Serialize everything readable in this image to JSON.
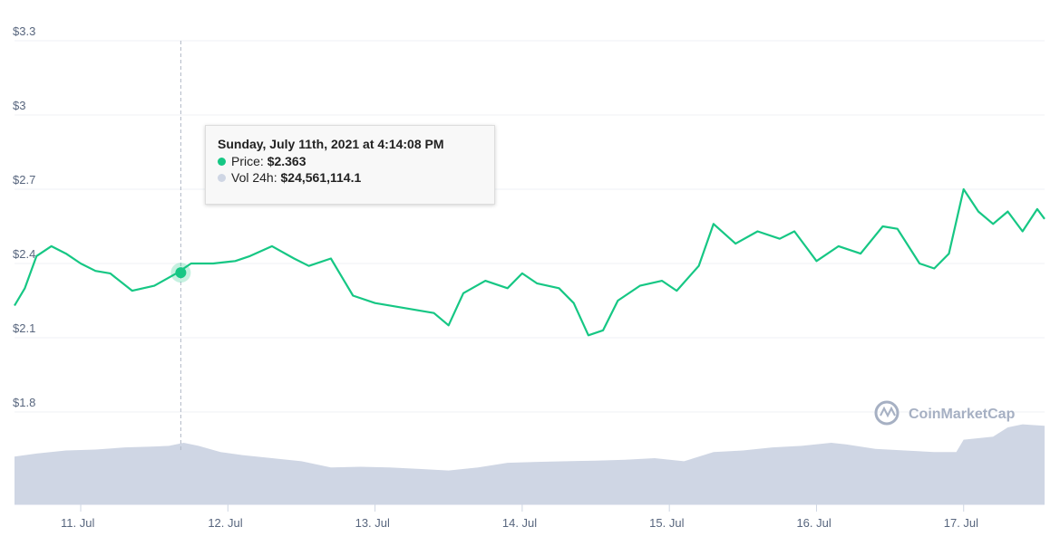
{
  "chart_data": {
    "type": "line",
    "title": "",
    "xlabel": "",
    "ylabel": "",
    "ylim": [
      1.8,
      3.3
    ],
    "y_ticks": [
      "$3.3",
      "$3",
      "$2.7",
      "$2.4",
      "$2.1",
      "$1.8"
    ],
    "y_tick_values": [
      3.3,
      3.0,
      2.7,
      2.4,
      2.1,
      1.8
    ],
    "x_range": [
      10.55,
      17.55
    ],
    "x_ticks": [
      {
        "value": 11,
        "label": "11. Jul"
      },
      {
        "value": 12,
        "label": "12. Jul"
      },
      {
        "value": 13,
        "label": "13. Jul"
      },
      {
        "value": 14,
        "label": "14. Jul"
      },
      {
        "value": 15,
        "label": "15. Jul"
      },
      {
        "value": 16,
        "label": "16. Jul"
      },
      {
        "value": 17,
        "label": "17. Jul"
      }
    ],
    "grid": true,
    "series": [
      {
        "name": "Price",
        "color": "#16c784",
        "x": [
          10.55,
          10.62,
          10.7,
          10.8,
          10.9,
          11.0,
          11.1,
          11.2,
          11.35,
          11.5,
          11.65,
          11.75,
          11.9,
          12.05,
          12.15,
          12.3,
          12.45,
          12.55,
          12.7,
          12.85,
          13.0,
          13.2,
          13.4,
          13.5,
          13.6,
          13.75,
          13.9,
          14.0,
          14.1,
          14.25,
          14.35,
          14.45,
          14.55,
          14.65,
          14.8,
          14.95,
          15.05,
          15.2,
          15.3,
          15.45,
          15.6,
          15.75,
          15.85,
          16.0,
          16.15,
          16.3,
          16.45,
          16.55,
          16.7,
          16.8,
          16.9,
          17.0,
          17.1,
          17.2,
          17.3,
          17.4,
          17.5,
          17.55
        ],
        "values": [
          2.23,
          2.3,
          2.43,
          2.47,
          2.44,
          2.4,
          2.37,
          2.36,
          2.29,
          2.31,
          2.36,
          2.4,
          2.4,
          2.41,
          2.43,
          2.47,
          2.42,
          2.39,
          2.42,
          2.27,
          2.24,
          2.22,
          2.2,
          2.15,
          2.28,
          2.33,
          2.3,
          2.36,
          2.32,
          2.3,
          2.24,
          2.11,
          2.13,
          2.25,
          2.31,
          2.33,
          2.29,
          2.39,
          2.56,
          2.48,
          2.53,
          2.5,
          2.53,
          2.41,
          2.47,
          2.44,
          2.55,
          2.54,
          2.4,
          2.38,
          2.44,
          2.7,
          2.61,
          2.56,
          2.61,
          2.53,
          2.62,
          2.58
        ]
      },
      {
        "name": "Vol 24h",
        "color": "#cfd6e4",
        "x": [
          10.55,
          10.7,
          10.9,
          11.1,
          11.3,
          11.5,
          11.6,
          11.7,
          11.8,
          11.95,
          12.1,
          12.3,
          12.5,
          12.7,
          12.9,
          13.1,
          13.3,
          13.5,
          13.7,
          13.9,
          14.1,
          14.3,
          14.5,
          14.7,
          14.9,
          15.1,
          15.3,
          15.5,
          15.7,
          15.9,
          16.1,
          16.2,
          16.4,
          16.6,
          16.8,
          16.95,
          17.0,
          17.2,
          17.3,
          17.4,
          17.55
        ],
        "values": [
          15.5,
          16.5,
          17.5,
          17.8,
          18.5,
          18.8,
          19.0,
          20.0,
          19.0,
          17.0,
          16.0,
          15.0,
          14.0,
          12.0,
          12.2,
          12.0,
          11.5,
          11.0,
          12.0,
          13.5,
          13.8,
          14.0,
          14.2,
          14.5,
          15.0,
          14.0,
          17.0,
          17.5,
          18.5,
          19.0,
          20.0,
          19.5,
          18.0,
          17.5,
          17.0,
          17.0,
          21.0,
          22.0,
          25.0,
          26.0,
          25.5
        ],
        "vol_max": 30
      }
    ],
    "hover": {
      "x": 11.68,
      "value": 2.363,
      "tooltip_title": "Sunday, July 11th, 2021 at 4:14:08 PM",
      "price_label": "Price:",
      "price_value": "$2.363",
      "volume_label": "Vol 24h:",
      "volume_value": "$24,561,114.1"
    },
    "watermark": "CoinMarketCap"
  }
}
